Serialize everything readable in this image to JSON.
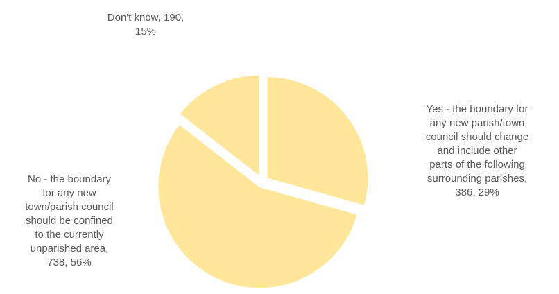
{
  "chart_data": {
    "type": "pie",
    "title": "",
    "slices": [
      {
        "label": "Yes -  the boundary for any new parish/town council should change and include other parts of the following surrounding parishes",
        "label_lines": [
          "Yes -  the boundary for",
          "any new parish/town",
          "council should change",
          "and include other",
          "parts of the following",
          "surrounding parishes,",
          "386, 29%"
        ],
        "value": 386,
        "percent": 29
      },
      {
        "label": "No - the boundary for any new town/parish council should be confined to the currently unparished area",
        "label_lines": [
          "No - the boundary",
          "for any new",
          "town/parish council",
          "should be confined",
          "to the currently",
          "unparished area,",
          "738, 56%"
        ],
        "value": 738,
        "percent": 56
      },
      {
        "label": "Don't know",
        "label_lines": [
          "Don't know, 190,",
          "15%"
        ],
        "value": 190,
        "percent": 15
      }
    ],
    "colors": {
      "slice": "#FFE699",
      "border": "#FFFFFF",
      "label_text": "#595959"
    },
    "exploded": true,
    "legend": "none"
  }
}
